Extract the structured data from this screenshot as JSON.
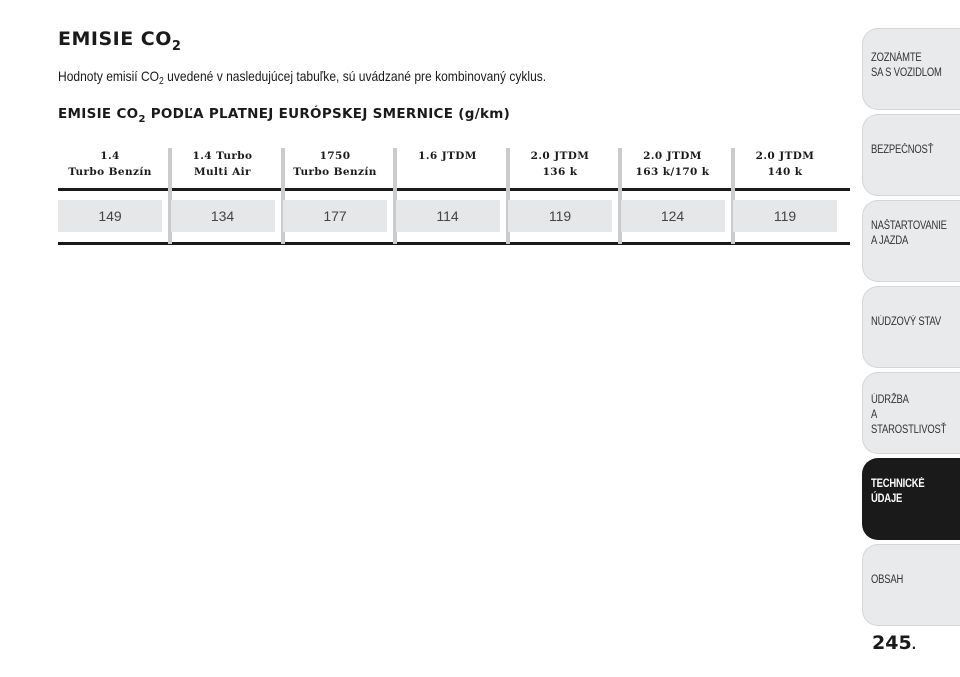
{
  "title": {
    "main": "EMISIE CO",
    "sub": "2"
  },
  "intro": {
    "before": "Hodnoty emisií CO",
    "sub": "2",
    "after": " uvedené v nasledujúcej tabuľke, sú uvádzané pre kombinovaný cyklus."
  },
  "subtitle": {
    "before": "EMISIE CO",
    "sub": "2",
    "after": " PODĽA PLATNEJ EURÓPSKEJ SMERNICE (g/km)"
  },
  "table": {
    "columns": [
      {
        "line1": "1.4",
        "line2": "Turbo Benzín",
        "value": "149"
      },
      {
        "line1": "1.4 Turbo",
        "line2": "Multi Air",
        "value": "134"
      },
      {
        "line1": "1750",
        "line2": "Turbo Benzín",
        "value": "177"
      },
      {
        "line1": "1.6 JTDM",
        "line2": "",
        "value": "114"
      },
      {
        "line1": "2.0 JTDM",
        "line2": "136 k",
        "value": "119"
      },
      {
        "line1": "2.0 JTDM",
        "line2": "163 k/170 k",
        "value": "124"
      },
      {
        "line1": "2.0 JTDM",
        "line2": "140 k",
        "value": "119"
      }
    ]
  },
  "sidebar": {
    "tabs": [
      {
        "label": "ZOZNÁMTE\nSA S VOZIDLOM",
        "active": false
      },
      {
        "label": "BEZPEČNOSŤ",
        "active": false
      },
      {
        "label": "NAŠTARTOVANIE\nA JAZDA",
        "active": false
      },
      {
        "label": "NÚDZOVÝ STAV",
        "active": false
      },
      {
        "label": "ÚDRŽBA\nA STAROSTLIVOSŤ",
        "active": false
      },
      {
        "label": "TECHNICKÉ\nÚDAJE",
        "active": true
      },
      {
        "label": "OBSAH",
        "active": false
      }
    ]
  },
  "page": {
    "number": "245",
    "dot": "."
  },
  "colors": {
    "accent": "#1a1a1a",
    "cell_bg": "#e6e7e8",
    "tab_bg": "#e9eaeb",
    "separator": "#c9cbcd"
  }
}
